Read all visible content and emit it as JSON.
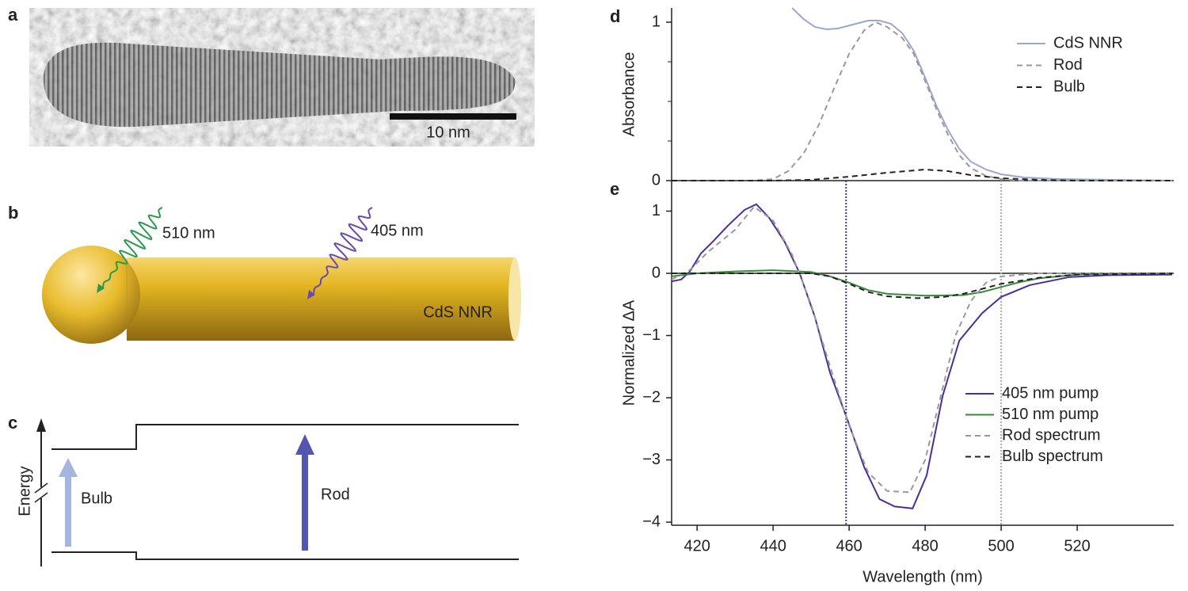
{
  "panels": {
    "a": {
      "label": "a",
      "scale_bar": "10 nm"
    },
    "b": {
      "label": "b",
      "green_light": "510 nm",
      "violet_light": "405 nm",
      "rod_label": "CdS NNR"
    },
    "c": {
      "label": "c",
      "axis_label": "Energy",
      "bulb_label": "Bulb",
      "rod_label": "Rod"
    }
  },
  "chart_data": [
    {
      "type": "line",
      "panel_label": "d",
      "ylabel": "Absorbance",
      "xlim": [
        413.3,
        545.4
      ],
      "ylim": [
        0,
        1.09
      ],
      "yticks": [
        0,
        1
      ],
      "minor_yticks": [
        0.25,
        0.5,
        0.75
      ],
      "legend": "top-right",
      "series": [
        {
          "name": "CdS NNR",
          "color": "#9aa6d6",
          "dash": "solid",
          "x": [
            445,
            448,
            451,
            454,
            457,
            461,
            465,
            468,
            471,
            474,
            477,
            480,
            483,
            486,
            489,
            492,
            496,
            500,
            506,
            515,
            530,
            545
          ],
          "values": [
            1.09,
            1.02,
            0.97,
            0.955,
            0.96,
            0.985,
            1.01,
            1.01,
            0.99,
            0.93,
            0.82,
            0.65,
            0.47,
            0.32,
            0.2,
            0.12,
            0.07,
            0.04,
            0.02,
            0.01,
            0.005,
            0
          ]
        },
        {
          "name": "Rod",
          "color": "#999999",
          "dash": "dashed",
          "x": [
            413.3,
            435,
            440,
            444,
            448,
            452,
            456,
            460,
            464,
            467,
            470,
            474,
            477,
            480,
            483,
            486,
            489,
            492,
            496,
            500,
            505,
            545
          ],
          "values": [
            0,
            0,
            0.01,
            0.06,
            0.17,
            0.35,
            0.58,
            0.8,
            0.95,
            1.0,
            0.97,
            0.9,
            0.8,
            0.63,
            0.45,
            0.29,
            0.16,
            0.08,
            0.03,
            0.01,
            0,
            0
          ]
        },
        {
          "name": "Bulb",
          "color": "#222222",
          "dash": "dashed",
          "x": [
            413.3,
            440,
            450,
            460,
            470,
            480,
            486,
            492,
            500,
            510,
            520,
            545
          ],
          "values": [
            0,
            0,
            0.005,
            0.025,
            0.05,
            0.07,
            0.06,
            0.035,
            0.015,
            0.005,
            0,
            0
          ]
        }
      ]
    },
    {
      "type": "line",
      "panel_label": "e",
      "ylabel": "Normalized ΔA",
      "xlabel": "Wavelength (nm)",
      "xlim": [
        413.3,
        545.4
      ],
      "ylim": [
        -4.05,
        1.49
      ],
      "xticks": [
        420,
        440,
        460,
        480,
        500,
        520
      ],
      "yticks": [
        1,
        0,
        {
          "value": -1,
          "label": "−1"
        },
        {
          "value": -2,
          "label": "−2"
        },
        {
          "value": -3,
          "label": "−3"
        },
        {
          "value": -4,
          "label": "−4"
        }
      ],
      "vlines": [
        {
          "x": 459.2,
          "color": "#3a3a9a"
        },
        {
          "x": 500,
          "color": "#aaaaaa"
        }
      ],
      "legend": "bottom-right",
      "series": [
        {
          "name": "405 nm pump",
          "color": "#4b2e9a",
          "dash": "solid",
          "x": [
            413.3,
            415.8,
            418,
            421,
            424,
            428,
            432.5,
            435.6,
            439,
            443,
            447,
            451,
            455,
            459.6,
            464,
            468,
            472,
            476.7,
            480.4,
            484.6,
            489,
            495,
            500,
            507.5,
            518,
            528,
            545
          ],
          "values": [
            -0.13,
            -0.1,
            0.02,
            0.32,
            0.5,
            0.76,
            1.02,
            1.11,
            0.89,
            0.51,
            0,
            -0.7,
            -1.6,
            -2.36,
            -3.12,
            -3.63,
            -3.75,
            -3.78,
            -3.25,
            -1.97,
            -1.08,
            -0.64,
            -0.38,
            -0.19,
            -0.06,
            -0.03,
            -0.02
          ]
        },
        {
          "name": "510 nm pump",
          "color": "#3a8a3a",
          "dash": "solid",
          "x": [
            413.3,
            420,
            430,
            440,
            450,
            455,
            460,
            465,
            470,
            480,
            490,
            495,
            500,
            505,
            510,
            520,
            530,
            545
          ],
          "values": [
            -0.05,
            0,
            0.03,
            0.05,
            0.02,
            -0.05,
            -0.15,
            -0.27,
            -0.33,
            -0.36,
            -0.35,
            -0.3,
            -0.22,
            -0.14,
            -0.08,
            -0.02,
            0,
            0
          ]
        },
        {
          "name": "Rod spectrum",
          "color": "#999999",
          "dash": "dashed",
          "x": [
            413.3,
            418,
            423,
            430,
            435,
            440,
            445,
            450,
            455,
            460,
            465,
            470,
            476,
            480,
            484,
            488,
            492,
            496,
            500,
            510,
            545
          ],
          "values": [
            -0.1,
            0.05,
            0.35,
            0.7,
            1.07,
            0.85,
            0.3,
            -0.5,
            -1.5,
            -2.45,
            -3.2,
            -3.5,
            -3.52,
            -3.0,
            -2.0,
            -1.0,
            -0.45,
            -0.15,
            -0.05,
            0,
            0
          ]
        },
        {
          "name": "Bulb spectrum",
          "color": "#222222",
          "dash": "dashed",
          "x": [
            413.3,
            450,
            455,
            460,
            465,
            470,
            478,
            485,
            490,
            495,
            500,
            510,
            520,
            545
          ],
          "values": [
            0,
            0,
            -0.05,
            -0.17,
            -0.3,
            -0.37,
            -0.4,
            -0.38,
            -0.33,
            -0.25,
            -0.17,
            -0.07,
            -0.02,
            0
          ]
        }
      ]
    }
  ]
}
